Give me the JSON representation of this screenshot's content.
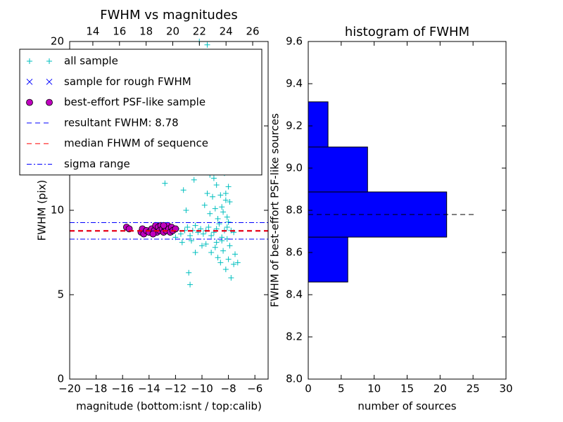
{
  "chart_data": [
    {
      "type": "scatter",
      "title": "FWHM vs magnitudes",
      "xlabel": "magnitude (bottom:isnt / top:calib)",
      "ylabel": "FWHM (pix)",
      "xlim": [
        -20,
        -5
      ],
      "xticks": [
        {
          "value": -20,
          "label": "−20"
        },
        {
          "value": -18,
          "label": "−18"
        },
        {
          "value": -16,
          "label": "−16"
        },
        {
          "value": -14,
          "label": "−14"
        },
        {
          "value": -12,
          "label": "−12"
        },
        {
          "value": -10,
          "label": "−10"
        },
        {
          "value": -8,
          "label": "−8"
        },
        {
          "value": -6,
          "label": "−6"
        }
      ],
      "x2lim": [
        12.26,
        27.16
      ],
      "x2ticks": [
        14,
        16,
        18,
        20,
        22,
        24,
        26
      ],
      "ylim": [
        0,
        20
      ],
      "yticks": [
        0,
        5,
        10,
        15,
        20
      ],
      "legend": "upper left",
      "series": [
        {
          "name": "all sample",
          "marker": "+",
          "color": "#00bfbf",
          "x": [
            -12.2,
            -11.9,
            -11.6,
            -11.3,
            -11.1,
            -10.9,
            -10.7,
            -10.5,
            -10.3,
            -10.1,
            -9.9,
            -9.7,
            -9.5,
            -9.3,
            -9.1,
            -8.9,
            -8.7,
            -8.5,
            -8.3,
            -8.1,
            -11.0,
            -10.9,
            -11.8,
            -11.7,
            -11.4,
            -11.2,
            -11.0,
            -10.6,
            -10.4,
            -10.2,
            -10.0,
            -9.8,
            -9.6,
            -9.5,
            -9.4,
            -9.3,
            -9.2,
            -9.1,
            -9.0,
            -8.9,
            -8.8,
            -8.7,
            -8.6,
            -8.5,
            -8.4,
            -8.3,
            -8.2,
            -8.1,
            -8.0,
            -7.9,
            -9.8,
            -9.6,
            -9.4,
            -9.2,
            -9.0,
            -8.8,
            -8.6,
            -8.4,
            -8.2,
            -8.0,
            -9.7,
            -9.3,
            -9.0,
            -8.8,
            -8.6,
            -8.4,
            -8.2,
            -8.0,
            -7.8,
            -7.6,
            -7.5,
            -7.3,
            -8.9,
            -8.5,
            -8.1,
            -7.9,
            -10.5,
            -10.0,
            -10.8,
            -12.0,
            -11.5,
            -12.5,
            -12.8,
            -9.9,
            -9.1,
            -8.7,
            -8.3,
            -8.0,
            -7.8,
            -7.6
          ],
          "values": [
            8.7,
            8.9,
            8.6,
            8.8,
            9.0,
            8.5,
            8.8,
            9.1,
            8.7,
            8.9,
            8.6,
            8.8,
            9.0,
            8.5,
            8.7,
            8.9,
            9.2,
            8.4,
            8.8,
            9.0,
            6.3,
            5.6,
            14.2,
            12.5,
            11.2,
            10.0,
            13.5,
            11.8,
            14.8,
            20.0,
            15.6,
            17.5,
            19.8,
            16.2,
            12.1,
            18.5,
            10.8,
            14.0,
            16.8,
            11.5,
            13.2,
            15.5,
            12.4,
            10.2,
            14.6,
            17.8,
            11.0,
            9.6,
            12.9,
            10.5,
            10.3,
            11.0,
            9.8,
            12.8,
            10.1,
            9.5,
            10.9,
            9.9,
            10.6,
            9.3,
            8.0,
            7.5,
            7.8,
            7.2,
            6.9,
            7.6,
            6.5,
            7.1,
            6.0,
            6.8,
            7.4,
            6.9,
            8.1,
            8.2,
            8.3,
            7.9,
            7.5,
            7.9,
            8.2,
            8.4,
            8.1,
            16.5,
            11.6,
            13.0,
            11.9,
            13.9,
            12.2,
            11.4,
            8.8,
            8.7
          ]
        },
        {
          "name": "sample for rough FWHM",
          "marker": "x",
          "color": "#0000ff",
          "x": [],
          "values": []
        },
        {
          "name": "best-effort PSF-like sample",
          "marker": "o",
          "color": "#bf00bf",
          "x": [
            -15.7,
            -15.5,
            -14.6,
            -14.5,
            -14.4,
            -14.2,
            -14.0,
            -13.8,
            -13.6,
            -13.5,
            -13.4,
            -13.3,
            -13.2,
            -13.1,
            -13.0,
            -12.9,
            -12.8,
            -12.7,
            -12.6,
            -12.5,
            -12.4,
            -12.3,
            -12.2,
            -12.0,
            -13.7,
            -12.9
          ],
          "values": [
            9.0,
            8.9,
            8.7,
            8.9,
            8.6,
            8.8,
            8.7,
            8.9,
            8.8,
            9.1,
            8.7,
            9.0,
            8.8,
            9.1,
            8.9,
            8.7,
            9.0,
            8.8,
            9.1,
            8.9,
            8.7,
            9.0,
            8.8,
            8.9,
            8.6,
            9.1
          ]
        }
      ],
      "lines": [
        {
          "name": "resultant FWHM: 8.78",
          "color": "#0000ff",
          "style": "dashed",
          "values": [
            8.78
          ]
        },
        {
          "name": "median FHWM of sequence",
          "color": "#ff0000",
          "style": "dashed",
          "values": [
            8.78
          ]
        },
        {
          "name": "sigma range",
          "color": "#0000ff",
          "style": "dashdot",
          "values": [
            9.27,
            8.29
          ]
        }
      ]
    },
    {
      "type": "histogram",
      "orientation": "horizontal",
      "title": "histogram of FWHM",
      "xlabel": "number of sources",
      "ylabel": "FWHM of best-effort PSF-like sources",
      "bins": [
        8.46,
        8.673,
        8.887,
        9.1,
        9.314
      ],
      "counts": [
        6,
        21,
        9,
        3
      ],
      "color": "#0000ff",
      "xlim": [
        0,
        30
      ],
      "xticks": [
        0,
        5,
        10,
        15,
        20,
        25,
        30
      ],
      "ylim": [
        8.0,
        9.6
      ],
      "yticks": [
        {
          "value": 8.0,
          "label": "8.0"
        },
        {
          "value": 8.2,
          "label": "8.2"
        },
        {
          "value": 8.4,
          "label": "8.4"
        },
        {
          "value": 8.6,
          "label": "8.6"
        },
        {
          "value": 8.8,
          "label": "8.8"
        },
        {
          "value": 9.0,
          "label": "9.0"
        },
        {
          "value": 9.2,
          "label": "9.2"
        },
        {
          "value": 9.4,
          "label": "9.4"
        },
        {
          "value": 9.6,
          "label": "9.6"
        }
      ],
      "marker_line": {
        "y": 8.78,
        "x": [
          0,
          25.4
        ],
        "color": "#000000"
      }
    }
  ]
}
